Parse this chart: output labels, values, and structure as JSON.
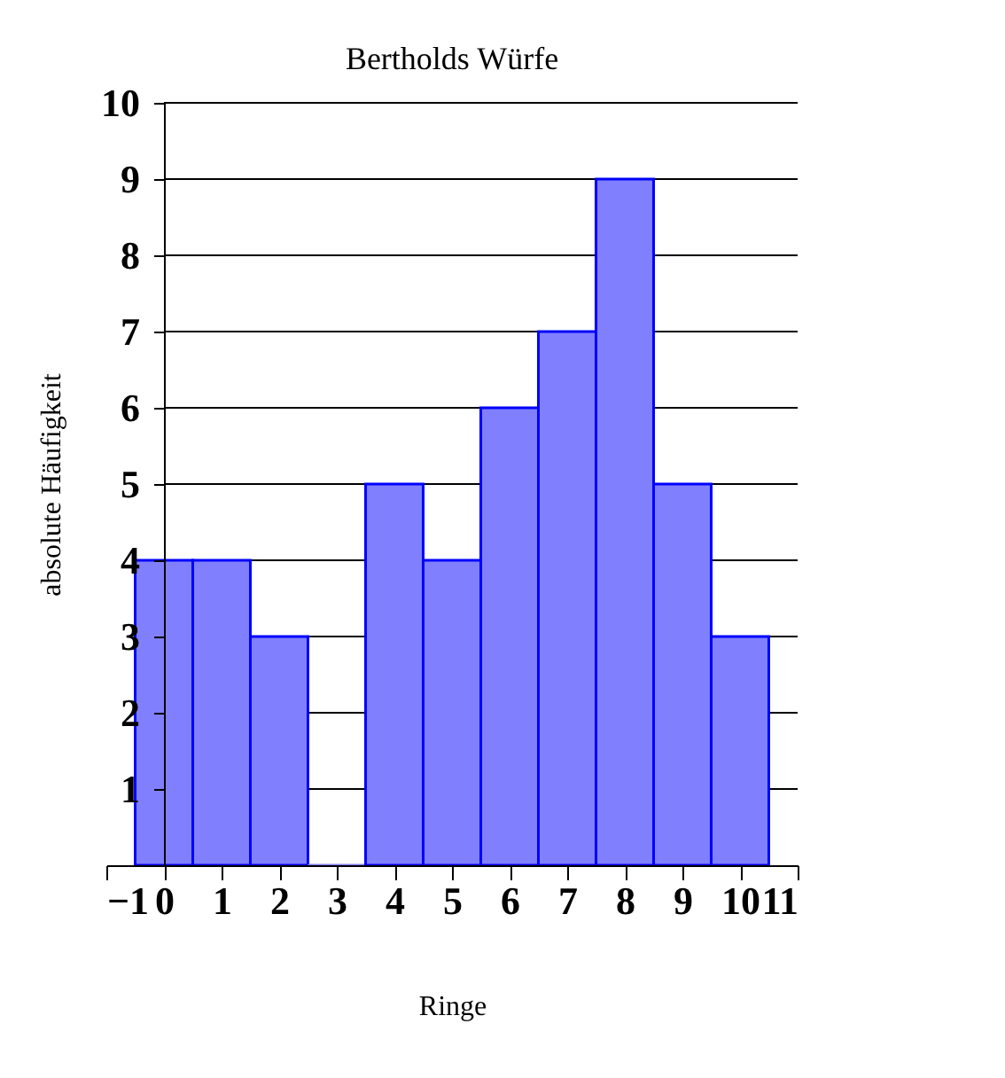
{
  "chart_data": {
    "type": "histogram",
    "title": "Bertholds Würfe",
    "xlabel": "Ringe",
    "ylabel": "absolute Häufigkeit",
    "bins": [
      -0.5,
      0.5,
      1.5,
      2.5,
      3.5,
      4.5,
      5.5,
      6.5,
      7.5,
      8.5,
      9.5,
      10.5
    ],
    "values": [
      4,
      4,
      3,
      0,
      5,
      4,
      6,
      7,
      9,
      5,
      3
    ],
    "color": "#8080ff",
    "xlim": [
      -1,
      11
    ],
    "xticks": [
      {
        "value": -1,
        "label": "−1"
      },
      0,
      1,
      2,
      3,
      4,
      5,
      6,
      7,
      8,
      9,
      10,
      11
    ],
    "ylim": [
      0,
      10
    ],
    "yticks": [
      1,
      2,
      3,
      4,
      5,
      6,
      7,
      8,
      9,
      10
    ],
    "grid": "y"
  }
}
